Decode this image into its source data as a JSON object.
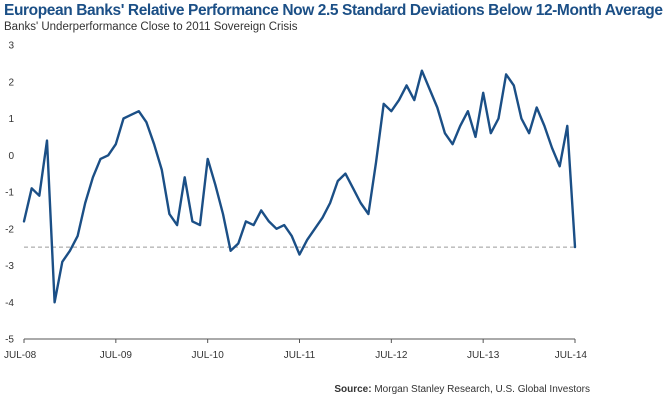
{
  "header": {
    "title": "European Banks' Relative Performance Now 2.5 Standard Deviations Below 12-Month Average",
    "subtitle": "Banks' Underperformance Close to 2011 Sovereign Crisis"
  },
  "footer": {
    "source_label": "Source:",
    "source_text": "Morgan Stanley Research, U.S. Global Investors"
  },
  "colors": {
    "series": "#1b4f86",
    "reference_line": "#9a9a9a",
    "axis": "#555555",
    "title": "#1b4f86"
  },
  "chart_data": {
    "type": "line",
    "title": "European Banks' Relative Performance Now 2.5 Standard Deviations Below 12-Month Average",
    "subtitle": "Banks' Underperformance Close to 2011 Sovereign Crisis",
    "xlabel": "",
    "ylabel": "",
    "ylim": [
      -5,
      3
    ],
    "xlim": [
      "2008-07",
      "2014-07"
    ],
    "y_ticks": [
      "3",
      "2",
      "1",
      "0",
      "-1",
      "-2",
      "-3",
      "-4",
      "-5"
    ],
    "x_ticks": [
      "JUL-08",
      "JUL-09",
      "JUL-10",
      "JUL-11",
      "JUL-12",
      "JUL-13",
      "JUL-14"
    ],
    "grid": false,
    "legend": "none",
    "reference_lines": [
      {
        "y": -2.5,
        "style": "dashed"
      }
    ],
    "series": [
      {
        "x": [
          "2008-07",
          "2008-08",
          "2008-09",
          "2008-10",
          "2008-11",
          "2008-12",
          "2009-01",
          "2009-02",
          "2009-03",
          "2009-04",
          "2009-05",
          "2009-06",
          "2009-07",
          "2009-08",
          "2009-09",
          "2009-10",
          "2009-11",
          "2009-12",
          "2010-01",
          "2010-02",
          "2010-03",
          "2010-04",
          "2010-05",
          "2010-06",
          "2010-07",
          "2010-08",
          "2010-09",
          "2010-10",
          "2010-11",
          "2010-12",
          "2011-01",
          "2011-02",
          "2011-03",
          "2011-04",
          "2011-05",
          "2011-06",
          "2011-07",
          "2011-08",
          "2011-09",
          "2011-10",
          "2011-11",
          "2011-12",
          "2012-01",
          "2012-02",
          "2012-03",
          "2012-04",
          "2012-05",
          "2012-06",
          "2012-07",
          "2012-08",
          "2012-09",
          "2012-10",
          "2012-11",
          "2012-12",
          "2013-01",
          "2013-02",
          "2013-03",
          "2013-04",
          "2013-05",
          "2013-06",
          "2013-07",
          "2013-08",
          "2013-09",
          "2013-10",
          "2013-11",
          "2013-12",
          "2014-01",
          "2014-02",
          "2014-03",
          "2014-04",
          "2014-05",
          "2014-06",
          "2014-07"
        ],
        "values": [
          -1.8,
          -0.9,
          -1.1,
          0.4,
          -4.0,
          -2.9,
          -2.6,
          -2.2,
          -1.3,
          -0.6,
          -0.1,
          0.0,
          0.3,
          1.0,
          1.1,
          1.2,
          0.9,
          0.3,
          -0.4,
          -1.6,
          -1.9,
          -0.6,
          -1.8,
          -1.9,
          -0.1,
          -0.8,
          -1.6,
          -2.6,
          -2.4,
          -1.8,
          -1.9,
          -1.5,
          -1.8,
          -2.0,
          -1.9,
          -2.2,
          -2.7,
          -2.3,
          -2.0,
          -1.7,
          -1.3,
          -0.7,
          -0.5,
          -0.9,
          -1.3,
          -1.6,
          -0.2,
          1.4,
          1.2,
          1.5,
          1.9,
          1.5,
          2.3,
          1.8,
          1.3,
          0.6,
          0.3,
          0.8,
          1.2,
          0.5,
          1.7,
          0.6,
          1.0,
          2.2,
          1.9,
          1.0,
          0.6,
          1.3,
          0.8,
          0.2,
          -0.3,
          0.8,
          -2.5
        ]
      }
    ]
  }
}
